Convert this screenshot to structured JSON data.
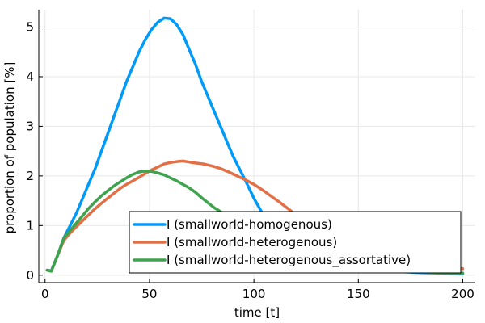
{
  "chart_data": {
    "type": "line",
    "xlabel": "time [t]",
    "ylabel": "proportion of population [%]",
    "xlim": [
      -3,
      206
    ],
    "ylim": [
      -0.15,
      5.35
    ],
    "x_ticks": [
      0,
      50,
      100,
      150,
      200
    ],
    "x_tick_labels": [
      "0",
      "50",
      "100",
      "150",
      "200"
    ],
    "y_ticks": [
      0,
      1,
      2,
      3,
      4,
      5
    ],
    "y_tick_labels": [
      "0",
      "1",
      "2",
      "3",
      "4",
      "5"
    ],
    "grid": true,
    "legend_position": "bottom-right",
    "series": [
      {
        "name": "I (smallworld-homogenous)",
        "color": "#009af9",
        "x": [
          1,
          3,
          6,
          9,
          12,
          15,
          18,
          21,
          24,
          27,
          30,
          33,
          36,
          39,
          42,
          45,
          48,
          51,
          54,
          57,
          60,
          63,
          66,
          69,
          72,
          75,
          78,
          81,
          84,
          87,
          90,
          93,
          96,
          100,
          104,
          108,
          112,
          116,
          120,
          125,
          130,
          140,
          150,
          160,
          170,
          180,
          190,
          200
        ],
        "y": [
          0.1,
          0.09,
          0.4,
          0.75,
          1.0,
          1.25,
          1.55,
          1.85,
          2.15,
          2.5,
          2.85,
          3.2,
          3.55,
          3.9,
          4.2,
          4.5,
          4.75,
          4.95,
          5.1,
          5.18,
          5.17,
          5.05,
          4.85,
          4.55,
          4.25,
          3.9,
          3.6,
          3.3,
          3.0,
          2.7,
          2.4,
          2.15,
          1.9,
          1.55,
          1.25,
          1.0,
          0.8,
          0.63,
          0.5,
          0.38,
          0.3,
          0.2,
          0.13,
          0.09,
          0.07,
          0.05,
          0.04,
          0.03
        ]
      },
      {
        "name": "I (smallworld-heterogenous)",
        "color": "#e26f46",
        "x": [
          1,
          3,
          6,
          9,
          12,
          15,
          18,
          21,
          24,
          27,
          30,
          33,
          36,
          39,
          42,
          45,
          48,
          51,
          54,
          57,
          60,
          63,
          66,
          69,
          72,
          76,
          80,
          84,
          88,
          92,
          96,
          100,
          104,
          108,
          112,
          116,
          120,
          125,
          130,
          135,
          140,
          150,
          160,
          170,
          180,
          190,
          200
        ],
        "y": [
          0.1,
          0.08,
          0.4,
          0.7,
          0.85,
          0.98,
          1.1,
          1.22,
          1.34,
          1.45,
          1.55,
          1.65,
          1.75,
          1.83,
          1.9,
          1.97,
          2.05,
          2.12,
          2.18,
          2.24,
          2.27,
          2.29,
          2.3,
          2.28,
          2.26,
          2.24,
          2.2,
          2.15,
          2.08,
          2.0,
          1.92,
          1.83,
          1.72,
          1.6,
          1.48,
          1.35,
          1.22,
          1.08,
          0.95,
          0.82,
          0.7,
          0.5,
          0.35,
          0.25,
          0.18,
          0.15,
          0.13
        ]
      },
      {
        "name": "I (smallworld-heterogenous_assortative)",
        "color": "#3da44d",
        "x": [
          1,
          3,
          6,
          9,
          12,
          15,
          18,
          21,
          24,
          27,
          30,
          33,
          36,
          39,
          42,
          45,
          48,
          51,
          54,
          57,
          60,
          63,
          66,
          69,
          72,
          75,
          78,
          81,
          84,
          88,
          92,
          96,
          100,
          105,
          110,
          115,
          120,
          130,
          140,
          150,
          160,
          170,
          180,
          190,
          200
        ],
        "y": [
          0.1,
          0.08,
          0.4,
          0.75,
          0.9,
          1.05,
          1.2,
          1.35,
          1.48,
          1.6,
          1.7,
          1.8,
          1.88,
          1.96,
          2.03,
          2.08,
          2.1,
          2.09,
          2.06,
          2.02,
          1.96,
          1.9,
          1.83,
          1.76,
          1.67,
          1.56,
          1.46,
          1.36,
          1.28,
          1.18,
          1.08,
          0.98,
          0.88,
          0.77,
          0.67,
          0.58,
          0.5,
          0.37,
          0.27,
          0.19,
          0.14,
          0.1,
          0.07,
          0.05,
          0.04
        ]
      }
    ]
  }
}
